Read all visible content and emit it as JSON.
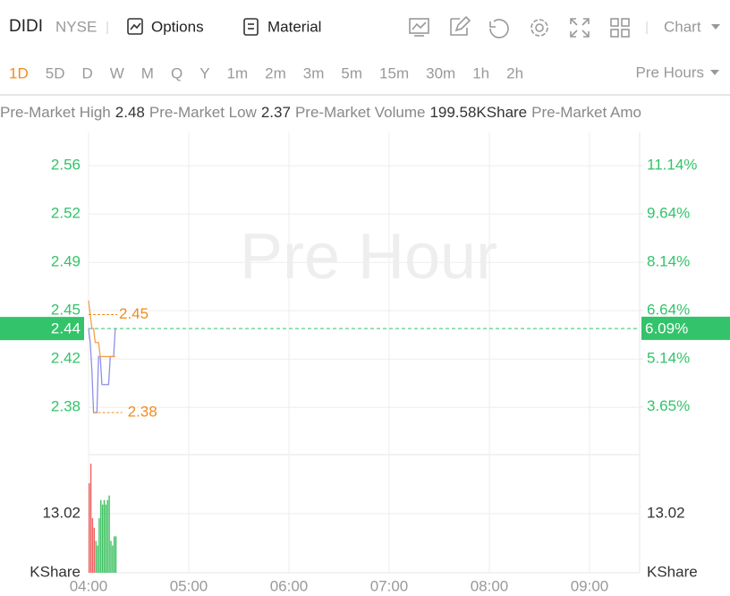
{
  "header": {
    "symbol": "DIDI",
    "exchange": "NYSE",
    "tabs": [
      "Options",
      "Material"
    ],
    "chart_menu": "Chart"
  },
  "periods": [
    "1D",
    "5D",
    "D",
    "W",
    "M",
    "Q",
    "Y",
    "1m",
    "2m",
    "3m",
    "5m",
    "15m",
    "30m",
    "1h",
    "2h"
  ],
  "active_period": 0,
  "session": "Pre Hours",
  "stats": [
    {
      "label": "Pre-Market High",
      "value": "2.48"
    },
    {
      "label": "Pre-Market Low",
      "value": "2.37"
    },
    {
      "label": "Pre-Market Volume",
      "value": "199.58KShare"
    },
    {
      "label": "Pre-Market Amo"
    }
  ],
  "chart_data": {
    "type": "line",
    "watermark": "Pre Hour",
    "xlim": [
      "04:00",
      "09:30"
    ],
    "xticks": [
      "04:00",
      "05:00",
      "06:00",
      "07:00",
      "08:00",
      "09:00"
    ],
    "ylim": [
      2.35,
      2.58
    ],
    "yticks": [
      {
        "value": 2.5562,
        "label": "2.56"
      },
      {
        "value": 2.5217,
        "label": "2.52"
      },
      {
        "value": 2.4872,
        "label": "2.49"
      },
      {
        "value": 2.4527,
        "label": "2.45"
      },
      {
        "value": 2.4182,
        "label": "2.42"
      },
      {
        "value": 2.3837,
        "label": "2.38"
      }
    ],
    "y2lim": [
      2.17,
      12.17
    ],
    "y2ticks": [
      {
        "value": 11.14,
        "label": "11.14%"
      },
      {
        "value": 9.64,
        "label": "9.64%"
      },
      {
        "value": 8.14,
        "label": "8.14%"
      },
      {
        "value": 6.64,
        "label": "6.64%"
      },
      {
        "value": 5.14,
        "label": "5.14%"
      },
      {
        "value": 3.65,
        "label": "3.65%"
      }
    ],
    "x": [
      "04:00",
      "04:01",
      "04:02",
      "04:03",
      "04:04",
      "04:05",
      "04:06",
      "04:07",
      "04:08",
      "04:09",
      "04:10",
      "04:11",
      "04:12",
      "04:13",
      "04:14",
      "04:15",
      "04:16"
    ],
    "series": [
      {
        "color": "#8f8fe8",
        "values": [
          2.44,
          2.43,
          2.41,
          2.38,
          2.38,
          2.38,
          2.42,
          2.42,
          2.4,
          2.4,
          2.4,
          2.4,
          2.4,
          2.42,
          2.42,
          2.42,
          2.44
        ]
      },
      {
        "color": "#f5a040",
        "values": [
          2.46,
          2.45,
          2.44,
          2.44,
          2.43,
          2.43,
          2.43,
          2.42,
          2.42,
          2.42,
          2.42,
          2.42,
          2.42,
          2.42,
          2.42,
          2.42,
          2.42
        ]
      }
    ],
    "high_marker": {
      "x": "04:00",
      "value": 2.45
    },
    "low_marker": {
      "x": "04:03",
      "value": 2.38
    },
    "last_price": 2.44,
    "last_change": {
      "value": 6.09,
      "label": "6.09%"
    },
    "volume": {
      "values": [
        19.7,
        24,
        12,
        9.9,
        7,
        6,
        12,
        16,
        15,
        16,
        15,
        16,
        17,
        7,
        6,
        8,
        8
      ],
      "colors": [
        "#f06060",
        "#f06060",
        "#f06060",
        "#f06060",
        "#3cc060",
        "#3cc060",
        "#3cc060",
        "#3cc060",
        "#3cc060",
        "#3cc060",
        "#3cc060",
        "#3cc060",
        "#3cc060",
        "#3cc060",
        "#3cc060",
        "#3cc060",
        "#3cc060"
      ],
      "ylim": [
        0,
        26
      ],
      "yticks": [
        13.02
      ],
      "unit": "KShare"
    }
  }
}
